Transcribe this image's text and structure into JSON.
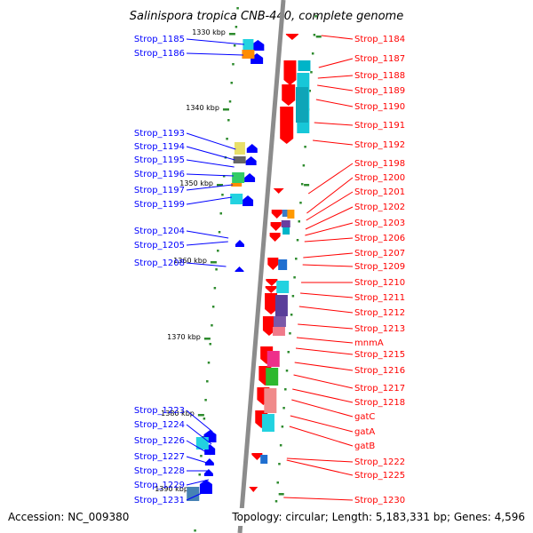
{
  "title": "Salinispora tropica CNB-440, complete genome",
  "footer": {
    "accession": "Accession: NC_009380",
    "summary": "Topology: circular; Length: 5,183,331 bp; Genes: 4,596"
  },
  "colors": {
    "forward": "#ff0000",
    "reverse": "#0000ff",
    "backbone": "#8c8c8c",
    "tick": "#2e8b2e"
  },
  "ticks": [
    "1330 kbp",
    "1340 kbp",
    "1350 kbp",
    "1360 kbp",
    "1370 kbp",
    "1380 kbp",
    "1390 kbp"
  ],
  "left_labels": [
    "Strop_1185",
    "Strop_1186",
    "Strop_1193",
    "Strop_1194",
    "Strop_1195",
    "Strop_1196",
    "Strop_1197",
    "Strop_1199",
    "Strop_1204",
    "Strop_1205",
    "Strop_1208",
    "Strop_1223",
    "Strop_1224",
    "Strop_1226",
    "Strop_1227",
    "Strop_1228",
    "Strop_1229",
    "Strop_1231"
  ],
  "right_labels": [
    "Strop_1184",
    "Strop_1187",
    "Strop_1188",
    "Strop_1189",
    "Strop_1190",
    "Strop_1191",
    "Strop_1192",
    "Strop_1198",
    "Strop_1200",
    "Strop_1201",
    "Strop_1202",
    "Strop_1203",
    "Strop_1206",
    "Strop_1207",
    "Strop_1209",
    "Strop_1210",
    "Strop_1211",
    "Strop_1212",
    "Strop_1213",
    "mnmA",
    "Strop_1215",
    "Strop_1216",
    "Strop_1217",
    "Strop_1218",
    "gatC",
    "gatA",
    "gatB",
    "Strop_1222",
    "Strop_1225",
    "Strop_1230"
  ]
}
